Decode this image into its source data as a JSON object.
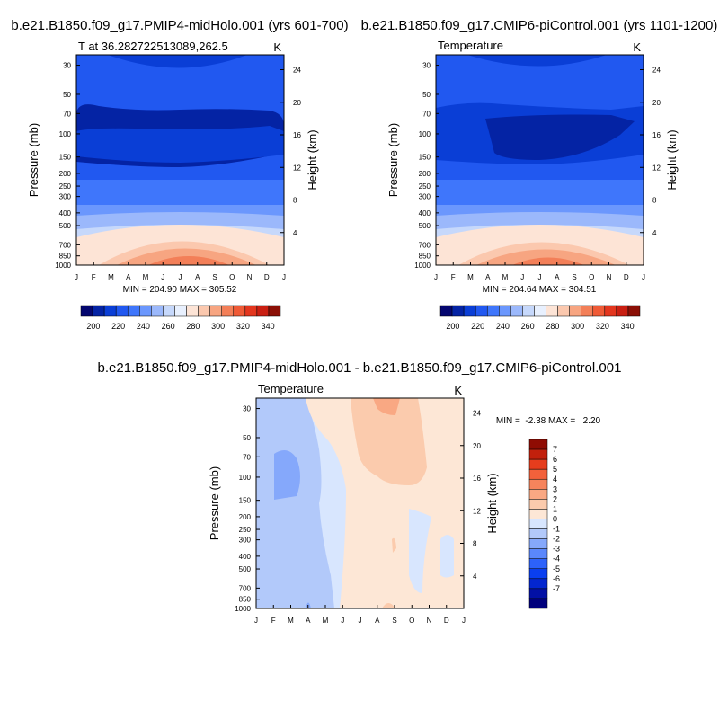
{
  "panels": [
    {
      "title": "b.e21.B1850.f09_g17.PMIP4-midHolo.001 (yrs 601-700)",
      "left_label": "T at 36.282722513089,262.5",
      "right_label": "K",
      "y_label": "Pressure (mb)",
      "y2_label": "Height (km)",
      "stats": "MIN = 204.90 MAX = 305.52"
    },
    {
      "title": "b.e21.B1850.f09_g17.CMIP6-piControl.001 (yrs 1101-1200)",
      "left_label": "Temperature",
      "right_label": "K",
      "y_label": "Pressure (mb)",
      "y2_label": "Height (km)",
      "stats": "MIN = 204.64 MAX = 304.51"
    },
    {
      "title": "b.e21.B1850.f09_g17.PMIP4-midHolo.001 - b.e21.B1850.f09_g17.CMIP6-piControl.001",
      "left_label": "Temperature",
      "right_label": "K",
      "y_label": "Pressure (mb)",
      "y2_label": "Height (km)",
      "stats": "MIN =  -2.38 MAX =   2.20"
    }
  ],
  "chart_data": [
    {
      "type": "heatmap",
      "title": "b.e21.B1850.f09_g17.PMIP4-midHolo.001 (yrs 601-700)",
      "xlabel": "",
      "ylabel": "Pressure (mb)",
      "y2label": "Height (km)",
      "x_ticks": [
        "J",
        "F",
        "M",
        "A",
        "M",
        "J",
        "J",
        "A",
        "S",
        "O",
        "N",
        "D",
        "J"
      ],
      "y_ticks": [
        30,
        50,
        70,
        100,
        150,
        200,
        250,
        300,
        400,
        500,
        700,
        850,
        1000
      ],
      "y2_ticks": [
        24,
        20,
        16,
        12,
        8,
        4
      ],
      "y_scale": "log",
      "ylim": [
        1000,
        25
      ],
      "colorbar": {
        "orientation": "horizontal",
        "levels": [
          200,
          220,
          240,
          260,
          280,
          300,
          320,
          340
        ]
      },
      "min": 204.9,
      "max": 305.52
    },
    {
      "type": "heatmap",
      "title": "b.e21.B1850.f09_g17.CMIP6-piControl.001 (yrs 1101-1200)",
      "xlabel": "",
      "ylabel": "Pressure (mb)",
      "y2label": "Height (km)",
      "x_ticks": [
        "J",
        "F",
        "M",
        "A",
        "M",
        "J",
        "J",
        "A",
        "S",
        "O",
        "N",
        "D",
        "J"
      ],
      "y_ticks": [
        30,
        50,
        70,
        100,
        150,
        200,
        250,
        300,
        400,
        500,
        700,
        850,
        1000
      ],
      "y2_ticks": [
        24,
        20,
        16,
        12,
        8,
        4
      ],
      "y_scale": "log",
      "ylim": [
        1000,
        25
      ],
      "colorbar": {
        "orientation": "horizontal",
        "levels": [
          200,
          220,
          240,
          260,
          280,
          300,
          320,
          340
        ]
      },
      "min": 204.64,
      "max": 304.51
    },
    {
      "type": "heatmap",
      "title": "b.e21.B1850.f09_g17.PMIP4-midHolo.001 - b.e21.B1850.f09_g17.CMIP6-piControl.001",
      "xlabel": "",
      "ylabel": "Pressure (mb)",
      "y2label": "Height (km)",
      "x_ticks": [
        "J",
        "F",
        "M",
        "A",
        "M",
        "J",
        "J",
        "A",
        "S",
        "O",
        "N",
        "D",
        "J"
      ],
      "y_ticks": [
        30,
        50,
        70,
        100,
        150,
        200,
        250,
        300,
        400,
        500,
        700,
        850,
        1000
      ],
      "y2_ticks": [
        24,
        20,
        16,
        12,
        8,
        4
      ],
      "y_scale": "log",
      "ylim": [
        1000,
        25
      ],
      "colorbar": {
        "orientation": "vertical",
        "levels": [
          7,
          6,
          5,
          4,
          3,
          2,
          1,
          0,
          -1,
          -2,
          -3,
          -4,
          -5,
          -6,
          -7
        ]
      },
      "min": -2.38,
      "max": 2.2
    }
  ],
  "colors": {
    "abs_palette": [
      "#04066f",
      "#0423a4",
      "#0a3ed6",
      "#2158f0",
      "#3f76fb",
      "#6b97fd",
      "#9bb8fb",
      "#c6d8fb",
      "#e8f0fe",
      "#fde4d6",
      "#fbc8ae",
      "#f7a581",
      "#f37f58",
      "#ef5a36",
      "#e3361e",
      "#c91f12",
      "#8b0f06"
    ],
    "diff_palette": [
      "#00007c",
      "#0210a5",
      "#0326cf",
      "#0a3ff0",
      "#2d62fa",
      "#5a87fc",
      "#85a8fb",
      "#b2c9fa",
      "#d8e6fe",
      "#fde7d6",
      "#fbcbad",
      "#f9a883",
      "#f6845c",
      "#f2613b",
      "#e63d1d",
      "#c2200c",
      "#8f0c03"
    ]
  }
}
